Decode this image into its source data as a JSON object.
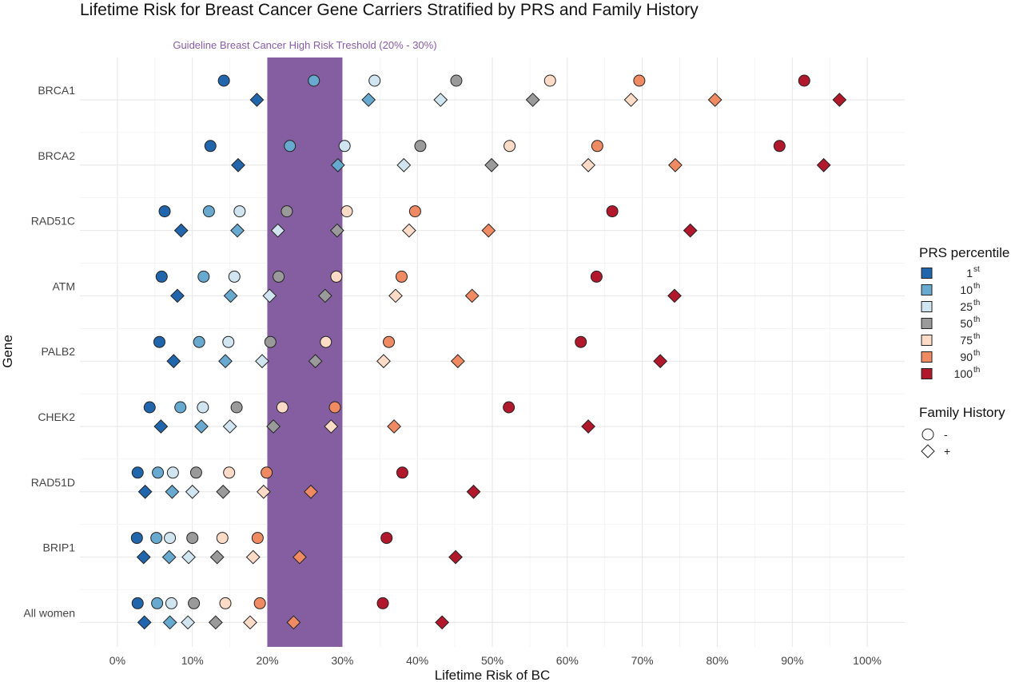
{
  "chart_data": {
    "type": "scatter",
    "title": "Lifetime Risk for Breast Cancer Gene Carriers Stratified by PRS and Family History",
    "xlabel": "Lifetime Risk of BC",
    "ylabel": "Gene",
    "xlim": [
      -5,
      105
    ],
    "x_ticks": [
      "0%",
      "10%",
      "20%",
      "30%",
      "40%",
      "50%",
      "60%",
      "70%",
      "80%",
      "90%",
      "100%"
    ],
    "grid": true,
    "highlight_band": {
      "range": [
        20,
        30
      ],
      "label": "Guideline Breast Cancer High Risk Treshold (20% - 30%)",
      "color": "#845ea1"
    },
    "categories": [
      "BRCA1",
      "BRCA2",
      "RAD51C",
      "ATM",
      "PALB2",
      "CHEK2",
      "RAD51D",
      "BRIP1",
      "All women"
    ],
    "prs_levels": [
      {
        "label": "1",
        "sup": "st",
        "color": "#2166ac"
      },
      {
        "label": "10",
        "sup": "th",
        "color": "#67a9cf"
      },
      {
        "label": "25",
        "sup": "th",
        "color": "#d1e5f0"
      },
      {
        "label": "50",
        "sup": "th",
        "color": "#9a9a9a"
      },
      {
        "label": "75",
        "sup": "th",
        "color": "#fddbc7"
      },
      {
        "label": "90",
        "sup": "th",
        "color": "#ef8a62"
      },
      {
        "label": "100",
        "sup": "th",
        "color": "#b2182b"
      }
    ],
    "family_history": [
      {
        "label": "-",
        "shape": "circle"
      },
      {
        "label": "+",
        "shape": "diamond"
      }
    ],
    "series": [
      {
        "family_history": "-",
        "prs": "1st",
        "values": [
          14.2,
          12.4,
          6.3,
          5.9,
          5.6,
          4.3,
          2.7,
          2.6,
          2.7
        ]
      },
      {
        "family_history": "-",
        "prs": "10th",
        "values": [
          26.2,
          23.0,
          12.2,
          11.5,
          10.9,
          8.4,
          5.4,
          5.2,
          5.3
        ]
      },
      {
        "family_history": "-",
        "prs": "25th",
        "values": [
          34.3,
          30.3,
          16.3,
          15.6,
          14.8,
          11.4,
          7.4,
          7.0,
          7.2
        ]
      },
      {
        "family_history": "-",
        "prs": "50th",
        "values": [
          45.2,
          40.4,
          22.6,
          21.5,
          20.4,
          15.9,
          10.5,
          10.0,
          10.2
        ]
      },
      {
        "family_history": "-",
        "prs": "75th",
        "values": [
          57.7,
          52.3,
          30.6,
          29.2,
          27.8,
          22.0,
          14.9,
          14.0,
          14.4
        ]
      },
      {
        "family_history": "-",
        "prs": "90th",
        "values": [
          69.6,
          64.0,
          39.7,
          37.9,
          36.2,
          29.0,
          19.9,
          18.7,
          19.0
        ]
      },
      {
        "family_history": "-",
        "prs": "100th",
        "values": [
          91.6,
          88.3,
          66.0,
          63.9,
          61.8,
          52.2,
          38.0,
          35.9,
          35.4
        ]
      },
      {
        "family_history": "+",
        "prs": "1st",
        "values": [
          18.6,
          16.1,
          8.5,
          8.0,
          7.5,
          5.8,
          3.7,
          3.5,
          3.6
        ]
      },
      {
        "family_history": "+",
        "prs": "10th",
        "values": [
          33.5,
          29.4,
          16.0,
          15.1,
          14.4,
          11.2,
          7.3,
          6.9,
          7.0
        ]
      },
      {
        "family_history": "+",
        "prs": "25th",
        "values": [
          43.1,
          38.2,
          21.4,
          20.3,
          19.3,
          15.0,
          10.0,
          9.5,
          9.4
        ]
      },
      {
        "family_history": "+",
        "prs": "50th",
        "values": [
          55.4,
          49.9,
          29.3,
          27.7,
          26.4,
          20.8,
          14.1,
          13.3,
          13.1
        ]
      },
      {
        "family_history": "+",
        "prs": "75th",
        "values": [
          68.5,
          62.8,
          38.9,
          37.1,
          35.5,
          28.5,
          19.5,
          18.1,
          17.7
        ]
      },
      {
        "family_history": "+",
        "prs": "90th",
        "values": [
          79.7,
          74.4,
          49.5,
          47.3,
          45.4,
          36.9,
          25.8,
          24.3,
          23.5
        ]
      },
      {
        "family_history": "+",
        "prs": "100th",
        "values": [
          96.3,
          94.2,
          76.4,
          74.3,
          72.4,
          62.8,
          47.5,
          45.1,
          43.3
        ]
      }
    ],
    "legend": {
      "prs_title": "PRS percentile",
      "fh_title": "Family History",
      "position": "right"
    }
  }
}
